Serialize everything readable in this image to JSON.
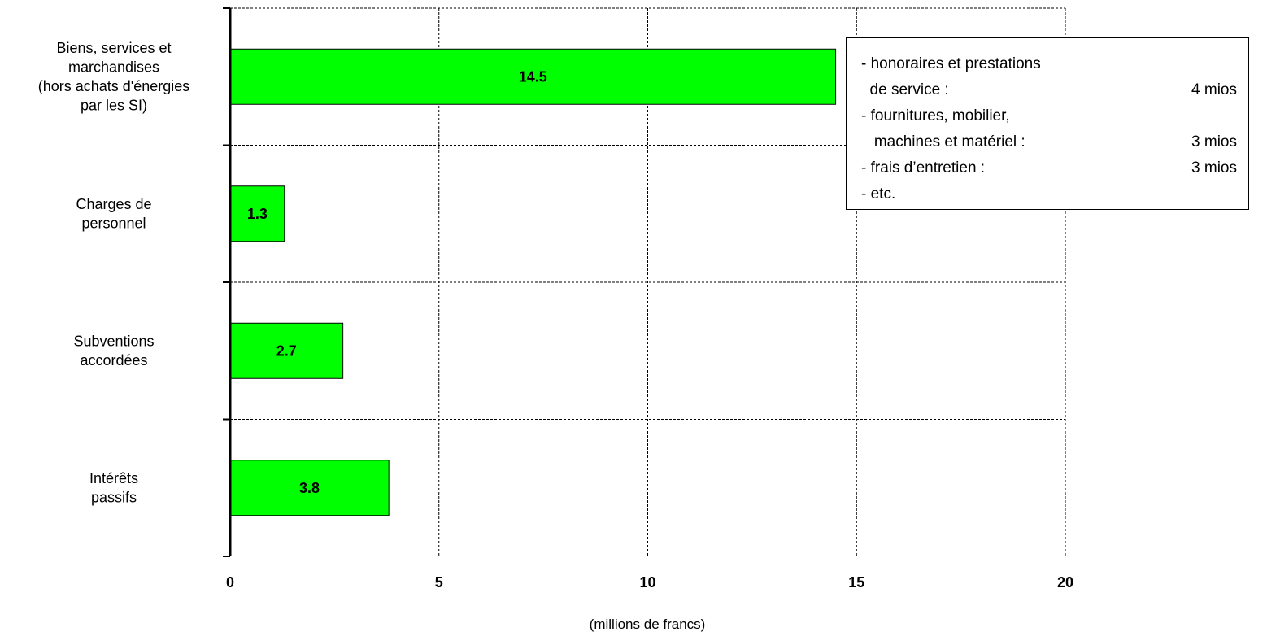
{
  "chart_data": {
    "type": "bar",
    "orientation": "horizontal",
    "categories": [
      [
        "Biens, services et",
        "marchandises",
        "(hors achats d'énergies",
        "par les SI)"
      ],
      [
        "Charges de",
        "personnel"
      ],
      [
        "Subventions",
        "accordées"
      ],
      [
        "Intérêts",
        "passifs"
      ]
    ],
    "values": [
      14.5,
      1.3,
      2.7,
      3.8
    ],
    "data_labels": [
      "14.5",
      "1.3",
      "2.7",
      "3.8"
    ],
    "title": "",
    "xlabel": "(millions de francs)",
    "ylabel": "",
    "xlim": [
      0,
      20
    ],
    "x_ticks": [
      0,
      5,
      10,
      15,
      20
    ],
    "x_tick_labels": [
      "0",
      "5",
      "10",
      "15",
      "20"
    ],
    "grid": true,
    "bar_color": "#00ff00"
  },
  "note_box": {
    "lines": [
      {
        "text": "- honoraires et prestations",
        "amount": ""
      },
      {
        "text": "  de service :",
        "amount": "4 mios"
      },
      {
        "text": "- fournitures, mobilier,",
        "amount": ""
      },
      {
        "text": "   machines et matériel :",
        "amount": "3 mios"
      },
      {
        "text": "- frais d’entretien :",
        "amount": "3 mios"
      },
      {
        "text": "- etc.",
        "amount": ""
      }
    ]
  }
}
